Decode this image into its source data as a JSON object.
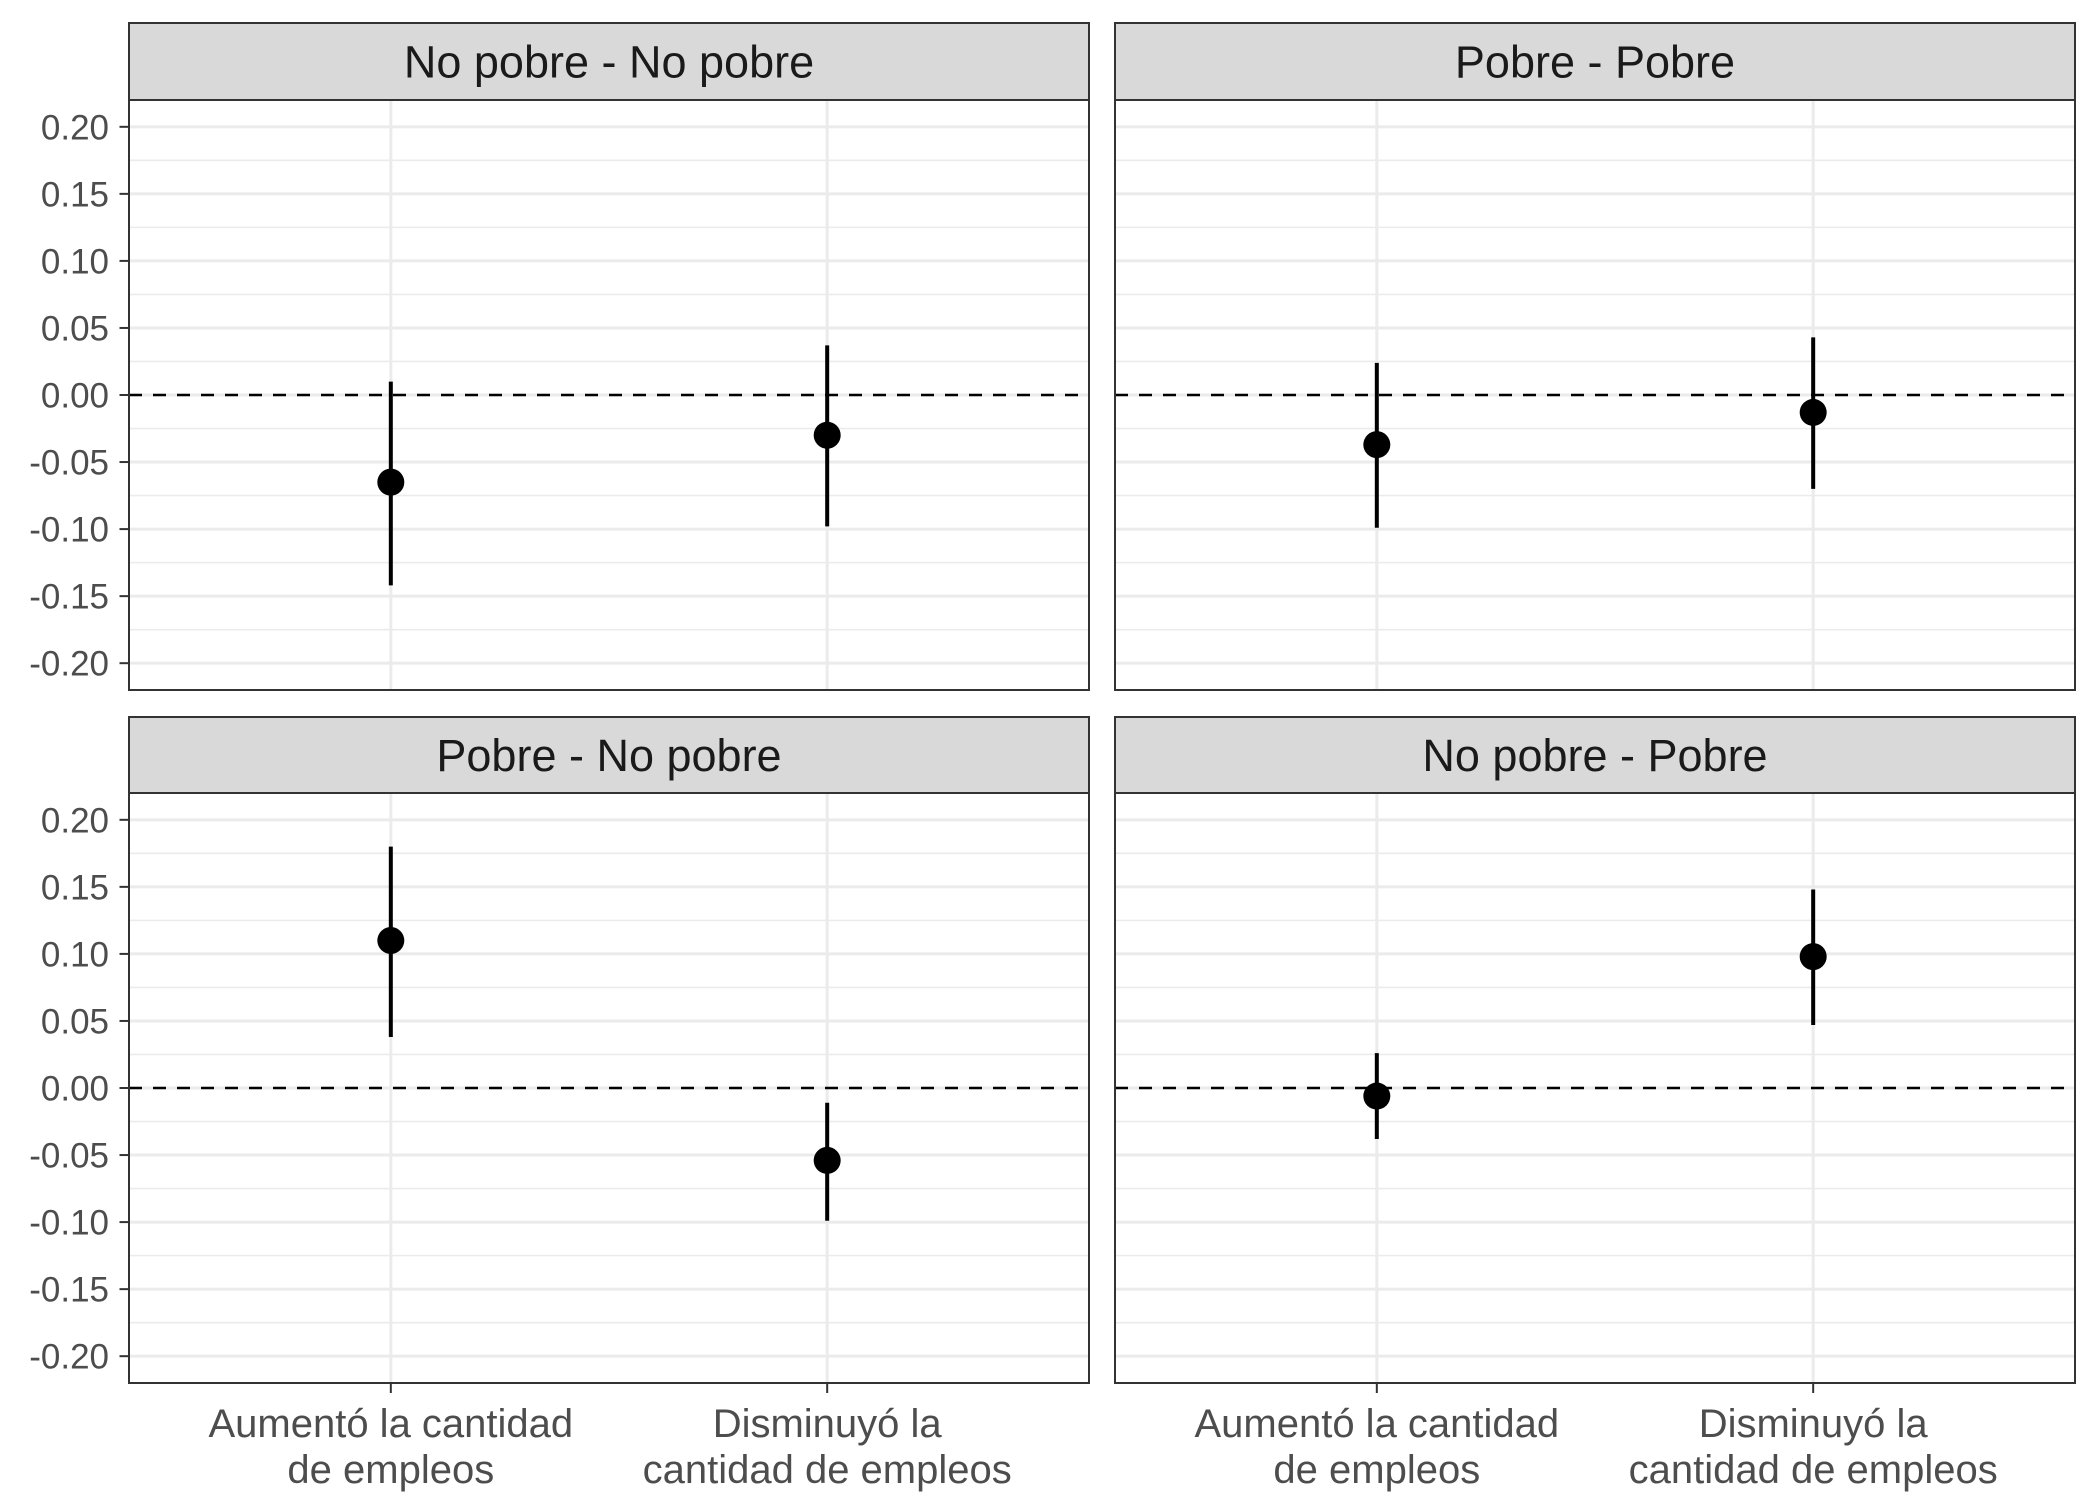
{
  "chart_data": {
    "type": "scatter",
    "error_bars": true,
    "categories": [
      [
        "Aumentó la cantidad",
        "de empleos"
      ],
      [
        "Disminuyó la",
        "cantidad de empleos"
      ]
    ],
    "ylim": [
      -0.22,
      0.22
    ],
    "yticks": [
      0.2,
      0.15,
      0.1,
      0.05,
      0,
      -0.05,
      -0.1,
      -0.15,
      -0.2
    ],
    "ytick_labels": [
      "0.20",
      "0.15",
      "0.10",
      "0.05",
      "0.00",
      "-0.05",
      "-0.10",
      "-0.15",
      "-0.20"
    ],
    "reference_line": {
      "y": 0,
      "dashed": true
    },
    "grid": true,
    "panels": [
      {
        "title": "No pobre - No pobre",
        "estimate": [
          -0.065,
          -0.03
        ],
        "lower": [
          -0.142,
          -0.098
        ],
        "upper": [
          0.01,
          0.037
        ]
      },
      {
        "title": "Pobre - Pobre",
        "estimate": [
          -0.037,
          -0.013
        ],
        "lower": [
          -0.099,
          -0.07
        ],
        "upper": [
          0.024,
          0.043
        ]
      },
      {
        "title": "Pobre - No pobre",
        "estimate": [
          0.11,
          -0.054
        ],
        "lower": [
          0.038,
          -0.099
        ],
        "upper": [
          0.18,
          -0.011
        ]
      },
      {
        "title": "No pobre - Pobre",
        "estimate": [
          -0.006,
          0.098
        ],
        "lower": [
          -0.038,
          0.047
        ],
        "upper": [
          0.026,
          0.148
        ]
      }
    ],
    "colors": {
      "points": "#000000",
      "strip": "#D9D9D9",
      "grid": "#EBEBEB"
    }
  }
}
